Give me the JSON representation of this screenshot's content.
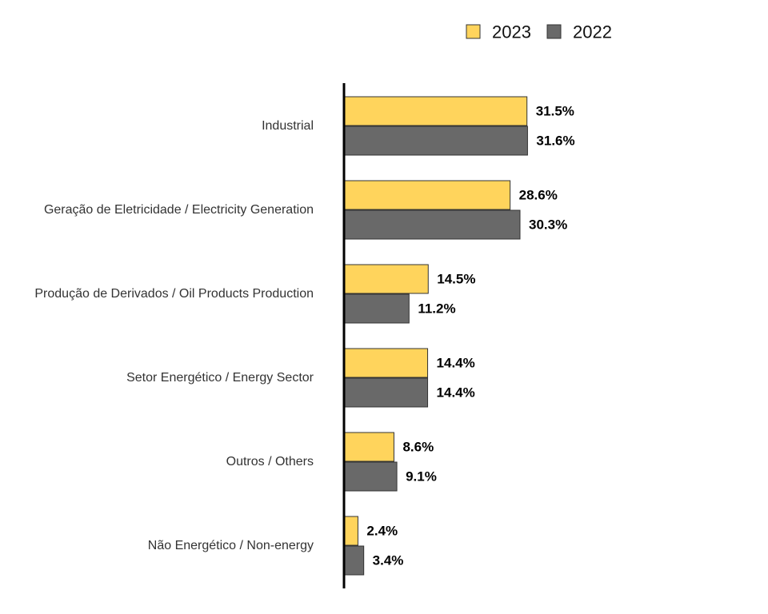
{
  "chart_data": {
    "type": "bar",
    "orientation": "horizontal",
    "title": "",
    "xlabel": "",
    "ylabel": "",
    "categories": [
      "Industrial",
      "Geração de Eletricidade / Electricity Generation",
      "Produção de Derivados / Oil Products Production",
      "Setor Energético / Energy Sector",
      "Outros / Others",
      "Não Energético / Non-energy"
    ],
    "series": [
      {
        "name": "2023",
        "color": "#FFD45C",
        "values": [
          31.5,
          28.6,
          14.5,
          14.4,
          8.6,
          2.4
        ],
        "labels": [
          "31.5%",
          "28.6%",
          "14.5%",
          "14.4%",
          "8.6%",
          "2.4%"
        ]
      },
      {
        "name": "2022",
        "color": "#696969",
        "values": [
          31.6,
          30.3,
          11.2,
          14.4,
          9.1,
          3.4
        ],
        "labels": [
          "31.6%",
          "30.3%",
          "11.2%",
          "14.4%",
          "9.1%",
          "3.4%"
        ]
      }
    ],
    "xlim": [
      0,
      73
    ],
    "grid": false,
    "legend_position": "top-right",
    "axis_color": "#000000",
    "bar_edge_color": "#333333"
  }
}
